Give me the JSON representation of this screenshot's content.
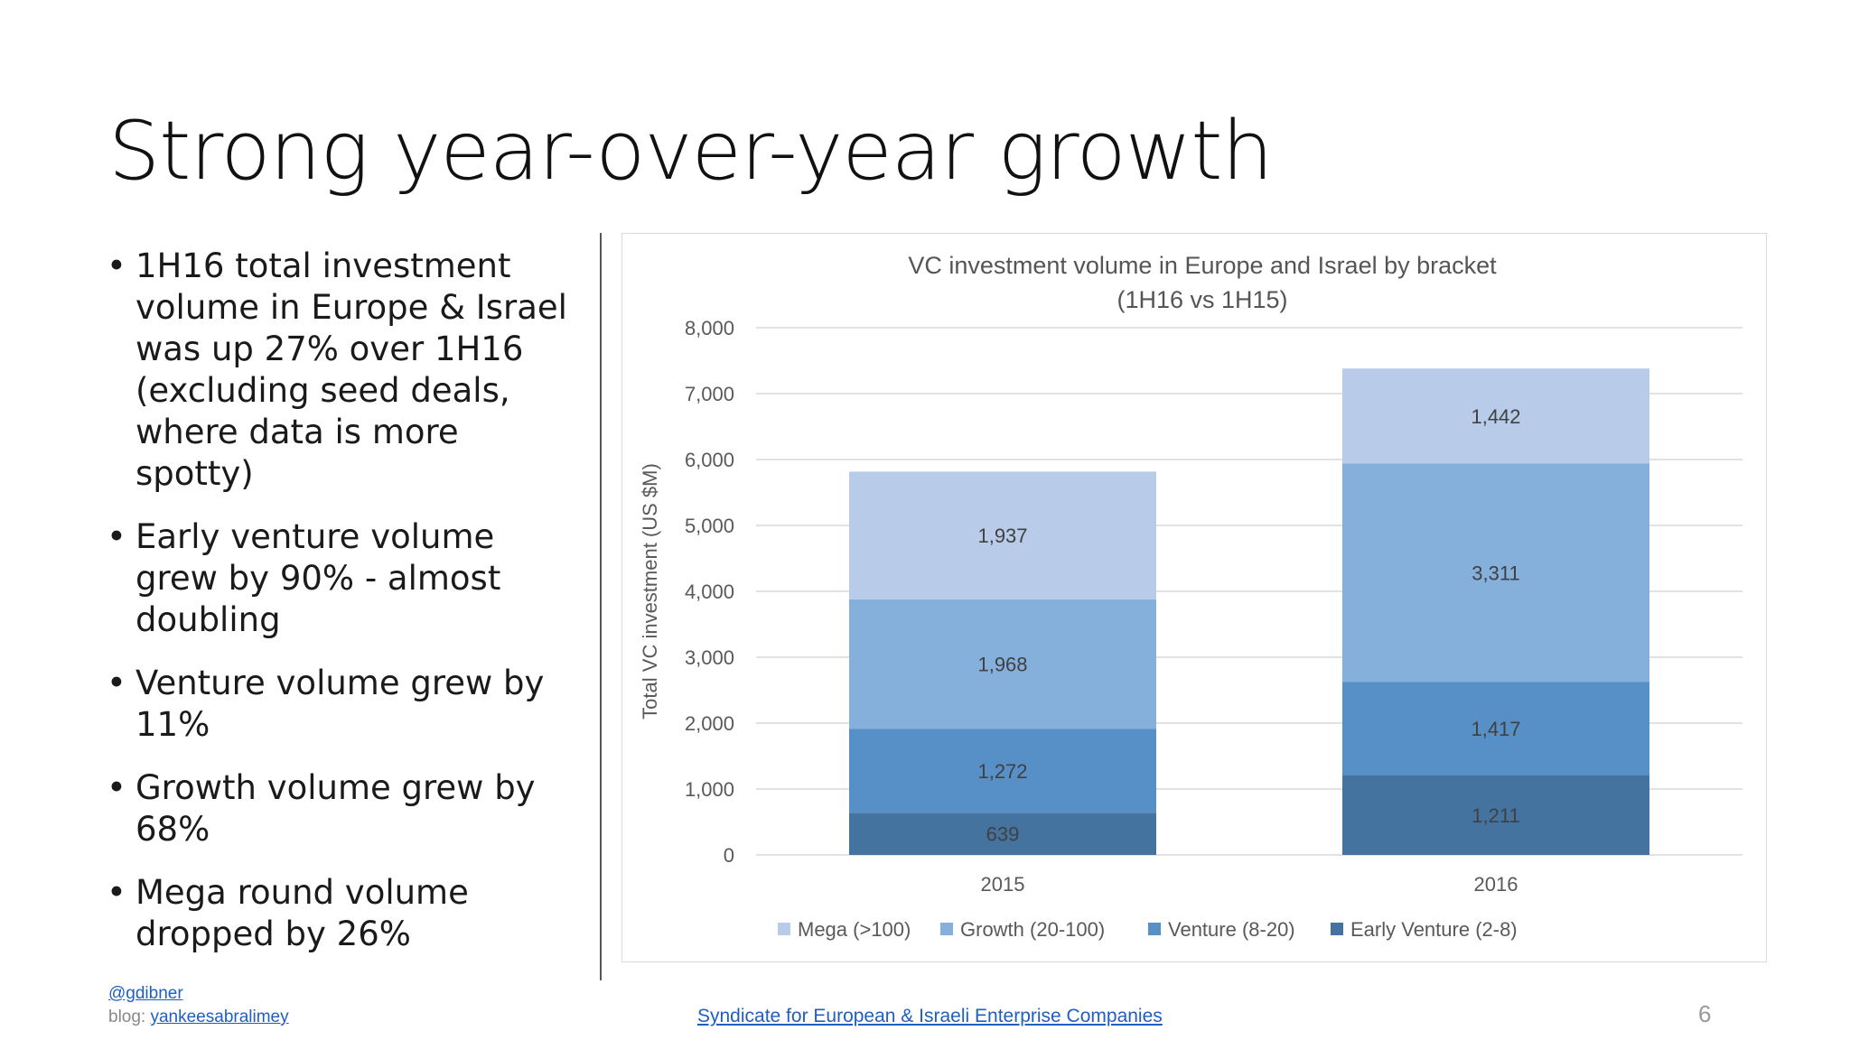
{
  "slide": {
    "title": "Strong year-over-year growth",
    "bullets": [
      "1H16 total investment volume in Europe & Israel was up 27% over 1H16 (excluding seed deals, where data is more spotty)",
      "Early venture volume grew by 90% - almost doubling",
      "Venture volume grew by 11%",
      "Growth volume grew by 68%",
      "Mega round volume dropped by 26%"
    ],
    "page_number": "6"
  },
  "footer": {
    "handle": "@gdibner",
    "blog_prefix": "blog:",
    "blog_link": "yankeesabralimey",
    "center_link": "Syndicate for European & Israeli Enterprise Companies"
  },
  "chart_data": {
    "type": "bar",
    "stacked": true,
    "title": "VC investment volume in Europe and Israel by bracket",
    "subtitle": "(1H16 vs 1H15)",
    "xlabel": "",
    "ylabel": "Total VC investment (US $M)",
    "ylim": [
      0,
      8000
    ],
    "yticks": [
      0,
      1000,
      2000,
      3000,
      4000,
      5000,
      6000,
      7000,
      8000
    ],
    "grid": true,
    "legend_position": "bottom",
    "categories": [
      "2015",
      "2016"
    ],
    "series": [
      {
        "name": "Early Venture (2-8)",
        "values": [
          639,
          1211
        ],
        "color": "#44739f"
      },
      {
        "name": "Venture (8-20)",
        "values": [
          1272,
          1417
        ],
        "color": "#5790c6"
      },
      {
        "name": "Growth (20-100)",
        "values": [
          1968,
          3311
        ],
        "color": "#86b0dc"
      },
      {
        "name": "Mega (>100)",
        "values": [
          1937,
          1442
        ],
        "color": "#b8cce9"
      }
    ],
    "legend_order": [
      "Mega (>100)",
      "Growth (20-100)",
      "Venture (8-20)",
      "Early Venture (2-8)"
    ]
  }
}
